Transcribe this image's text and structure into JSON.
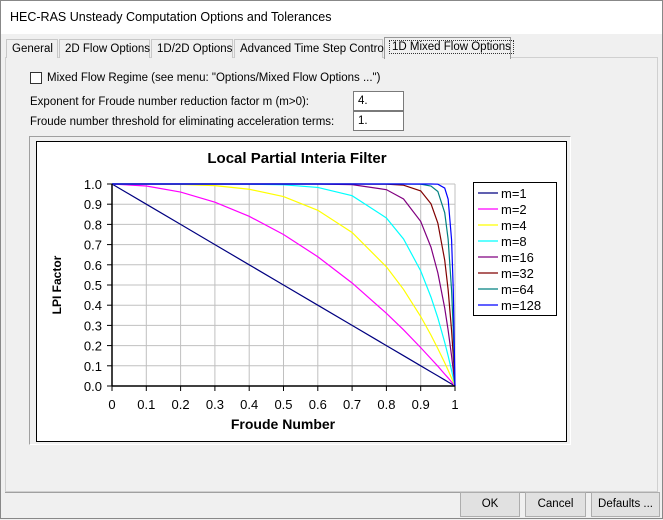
{
  "window": {
    "title": "HEC-RAS Unsteady Computation Options and Tolerances"
  },
  "tabs": [
    {
      "label": "General"
    },
    {
      "label": "2D Flow Options"
    },
    {
      "label": "1D/2D Options"
    },
    {
      "label": "Advanced Time Step Control"
    },
    {
      "label": "1D Mixed Flow Options",
      "active": true
    }
  ],
  "form": {
    "mixed_flow_checkbox": {
      "label": "Mixed Flow Regime (see menu: \"Options/Mixed Flow Options ...\")",
      "checked": false
    },
    "exponent": {
      "label": "Exponent for Froude number reduction factor m (m>0):",
      "value": "4."
    },
    "threshold": {
      "label": "Froude number threshold for eliminating acceleration terms:",
      "value": "1."
    }
  },
  "buttons": {
    "ok": "OK",
    "cancel": "Cancel",
    "defaults": "Defaults ..."
  },
  "chart_data": {
    "type": "line",
    "title": "Local Partial Interia Filter",
    "xlabel": "Froude Number",
    "ylabel": "LPI Factor",
    "xlim": [
      0,
      1
    ],
    "ylim": [
      0,
      1
    ],
    "xticks": [
      "0",
      "0.1",
      "0.2",
      "0.3",
      "0.4",
      "0.5",
      "0.6",
      "0.7",
      "0.8",
      "0.9",
      "1"
    ],
    "yticks": [
      "0.0",
      "0.1",
      "0.2",
      "0.3",
      "0.4",
      "0.5",
      "0.6",
      "0.7",
      "0.8",
      "0.9",
      "1.0"
    ],
    "grid": true,
    "legend": "right",
    "x": [
      0,
      0.1,
      0.2,
      0.3,
      0.4,
      0.5,
      0.6,
      0.7,
      0.8,
      0.85,
      0.9,
      0.93,
      0.95,
      0.97,
      0.98,
      0.99,
      0.995,
      1
    ],
    "series": [
      {
        "name": "m=1",
        "color": "#000080",
        "values": [
          1,
          0.9,
          0.8,
          0.7,
          0.6,
          0.5,
          0.4,
          0.3,
          0.2,
          0.15,
          0.1,
          0.07,
          0.05,
          0.03,
          0.02,
          0.01,
          0.005,
          0
        ]
      },
      {
        "name": "m=2",
        "color": "#ff00ff",
        "values": [
          1,
          0.99,
          0.96,
          0.91,
          0.84,
          0.75,
          0.64,
          0.51,
          0.36,
          0.278,
          0.19,
          0.135,
          0.098,
          0.059,
          0.04,
          0.02,
          0.01,
          0
        ]
      },
      {
        "name": "m=4",
        "color": "#ffff00",
        "values": [
          1,
          1,
          0.998,
          0.992,
          0.974,
          0.938,
          0.87,
          0.76,
          0.59,
          0.478,
          0.344,
          0.252,
          0.185,
          0.115,
          0.078,
          0.039,
          0.02,
          0
        ]
      },
      {
        "name": "m=8",
        "color": "#00ffff",
        "values": [
          1,
          1,
          1,
          1,
          0.999,
          0.996,
          0.983,
          0.942,
          0.832,
          0.728,
          0.57,
          0.44,
          0.337,
          0.216,
          0.149,
          0.077,
          0.039,
          0
        ]
      },
      {
        "name": "m=16",
        "color": "#800080",
        "values": [
          1,
          1,
          1,
          1,
          1,
          1,
          1,
          0.997,
          0.972,
          0.926,
          0.815,
          0.687,
          0.56,
          0.386,
          0.276,
          0.149,
          0.077,
          0
        ]
      },
      {
        "name": "m=32",
        "color": "#800000",
        "values": [
          1,
          1,
          1,
          1,
          1,
          1,
          1,
          1,
          0.999,
          0.994,
          0.966,
          0.902,
          0.806,
          0.623,
          0.476,
          0.275,
          0.149,
          0
        ]
      },
      {
        "name": "m=64",
        "color": "#008080",
        "values": [
          1,
          1,
          1,
          1,
          1,
          1,
          1,
          1,
          1,
          1,
          0.999,
          0.99,
          0.963,
          0.858,
          0.726,
          0.474,
          0.275,
          0
        ]
      },
      {
        "name": "m=128",
        "color": "#0000ff",
        "values": [
          1,
          1,
          1,
          1,
          1,
          1,
          1,
          1,
          1,
          1,
          1,
          1,
          0.999,
          0.98,
          0.925,
          0.724,
          0.474,
          0
        ]
      }
    ]
  }
}
